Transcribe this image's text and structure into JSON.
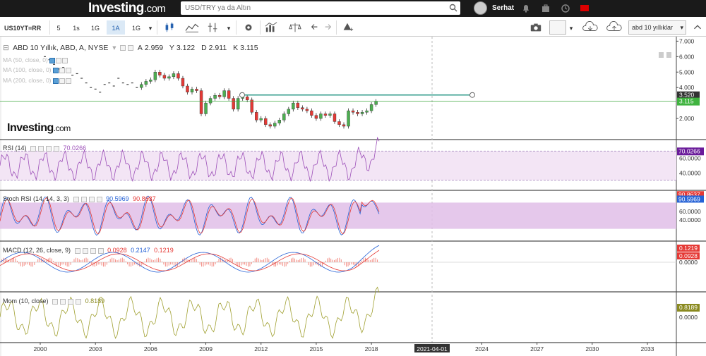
{
  "header": {
    "logo_main": "Investing",
    "logo_suffix": ".com",
    "search_placeholder": "USD/TRY ya da Altın",
    "username": "Serhat"
  },
  "toolbar": {
    "symbol": "US10YT=RR",
    "intervals": [
      "5",
      "1s",
      "1G",
      "1A",
      "1G"
    ],
    "active_interval": "1A",
    "template_name": "abd 10 yıllıklar"
  },
  "main_legend": {
    "title": "ABD 10 Yıllık, ABD, A, NYSE",
    "open_label": "A",
    "open": "2.959",
    "high_label": "Y",
    "high": "3.122",
    "low_label": "D",
    "low": "2.911",
    "close_label": "K",
    "close": "3.115"
  },
  "ma_overlays": [
    {
      "label": "MA (50, close, 0)"
    },
    {
      "label": "MA (100, close, 0)"
    },
    {
      "label": "MA (200, close, 0)"
    }
  ],
  "watermark": {
    "main": "Investing",
    "suffix": ".com"
  },
  "indicators": {
    "rsi": {
      "label": "RSI (14)",
      "value": "70.0266",
      "ticks": [
        "60.0000",
        "40.0000"
      ]
    },
    "stoch": {
      "label": "Stoch RSI (14, 14, 3, 3)",
      "k_value": "90.5969",
      "d_value": "90.8637",
      "ticks": [
        "60.0000",
        "40.0000"
      ]
    },
    "macd": {
      "label": "MACD (12, 26, close, 9)",
      "hist_value": "0.0928",
      "macd_value": "0.2147",
      "signal_value": "0.1219",
      "ticks": [
        "0.0000"
      ]
    },
    "mom": {
      "label": "Mom (10, close)",
      "value": "0.8189",
      "ticks": [
        "0.0000"
      ]
    }
  },
  "colors": {
    "up": "#4caf50",
    "down": "#e53935",
    "rsi": "#9c4fb8",
    "stoch_k": "#2662d6",
    "stoch_d": "#e53935",
    "mom": "#a0a030",
    "hline": "#2e9a8a",
    "close_line": "#3fa83f"
  },
  "chart_data": {
    "type": "candlestick",
    "x_axis_labels": [
      "2000",
      "2003",
      "2006",
      "2009",
      "2012",
      "2015",
      "2018",
      "2021-04-01",
      "2024",
      "2027",
      "2030",
      "2033"
    ],
    "y_ticks": [
      "7.000",
      "6.000",
      "5.000",
      "4.000",
      "2.000"
    ],
    "hline_value": "3.520",
    "last_value": "3.115",
    "x": [
      2000,
      2000.25,
      2000.5,
      2000.75,
      2001,
      2001.25,
      2001.5,
      2001.75,
      2002,
      2002.25,
      2002.5,
      2002.75,
      2003,
      2003.25,
      2003.5,
      2003.75,
      2004,
      2004.25,
      2004.5,
      2004.75,
      2005,
      2005.25,
      2005.5,
      2005.75,
      2006,
      2006.25,
      2006.5,
      2006.75,
      2007,
      2007.25,
      2007.5,
      2007.75,
      2008,
      2008.25,
      2008.5,
      2008.75,
      2009,
      2009.25,
      2009.5,
      2009.75,
      2010,
      2010.25,
      2010.5,
      2010.75,
      2011,
      2011.25,
      2011.5,
      2011.75,
      2012,
      2012.25,
      2012.5,
      2012.75,
      2013,
      2013.25,
      2013.5,
      2013.75,
      2014,
      2014.25,
      2014.5,
      2014.75,
      2015,
      2015.25,
      2015.5,
      2015.75,
      2016,
      2016.25,
      2016.5,
      2016.75,
      2017,
      2017.25,
      2017.5,
      2017.75,
      2018,
      2018.25
    ],
    "close": [
      6.2,
      6.0,
      5.8,
      5.5,
      5.2,
      5.3,
      5.1,
      4.8,
      4.9,
      4.6,
      4.3,
      4.0,
      3.9,
      3.7,
      4.2,
      4.3,
      4.1,
      4.6,
      4.3,
      4.2,
      4.3,
      4.0,
      4.2,
      4.4,
      4.5,
      5.0,
      4.8,
      4.6,
      4.7,
      4.9,
      4.6,
      4.1,
      3.7,
      3.9,
      3.8,
      2.3,
      3.0,
      3.3,
      3.5,
      3.4,
      3.8,
      3.3,
      2.6,
      3.3,
      3.4,
      3.2,
      2.4,
      1.9,
      2.0,
      1.6,
      1.5,
      1.7,
      1.9,
      2.3,
      2.6,
      3.0,
      2.7,
      2.6,
      2.5,
      2.2,
      2.0,
      2.3,
      2.2,
      2.3,
      1.8,
      1.6,
      1.5,
      2.5,
      2.4,
      2.3,
      2.4,
      2.5,
      2.9,
      3.1
    ],
    "rsi_ylim": [
      20,
      80
    ],
    "stoch_ylim": [
      0,
      100
    ]
  }
}
